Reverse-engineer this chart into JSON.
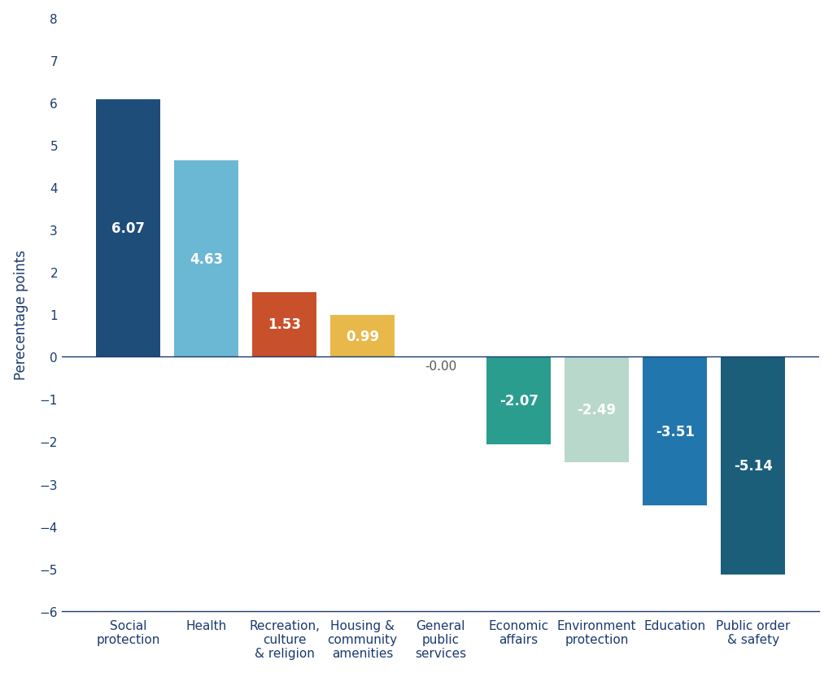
{
  "categories": [
    "Social\nprotection",
    "Health",
    "Recreation,\nculture\n& religion",
    "Housing &\ncommunity\namenities",
    "General\npublic\nservices",
    "Economic\naffairs",
    "Environment\nprotection",
    "Education",
    "Public order\n& safety"
  ],
  "values": [
    6.07,
    4.63,
    1.53,
    0.99,
    -0.0,
    -2.07,
    -2.49,
    -3.51,
    -5.14
  ],
  "bar_colors": [
    "#1e4d7a",
    "#6bb8d4",
    "#c8502a",
    "#e8b84b",
    "#6bb8d4",
    "#2a9d8f",
    "#b8d8cc",
    "#2176ae",
    "#1a5e7a"
  ],
  "label_colors": [
    "white",
    "white",
    "white",
    "white",
    "none",
    "white",
    "white",
    "white",
    "white"
  ],
  "zero_label_color": "#555555",
  "ylabel": "Perecentage points",
  "ylim": [
    -6,
    8
  ],
  "yticks": [
    -6,
    -5,
    -4,
    -3,
    -2,
    -1,
    0,
    1,
    2,
    3,
    4,
    5,
    6,
    7,
    8
  ],
  "label_fontsize": 12,
  "tick_fontsize": 11,
  "axis_label_fontsize": 12,
  "bar_width": 0.82
}
